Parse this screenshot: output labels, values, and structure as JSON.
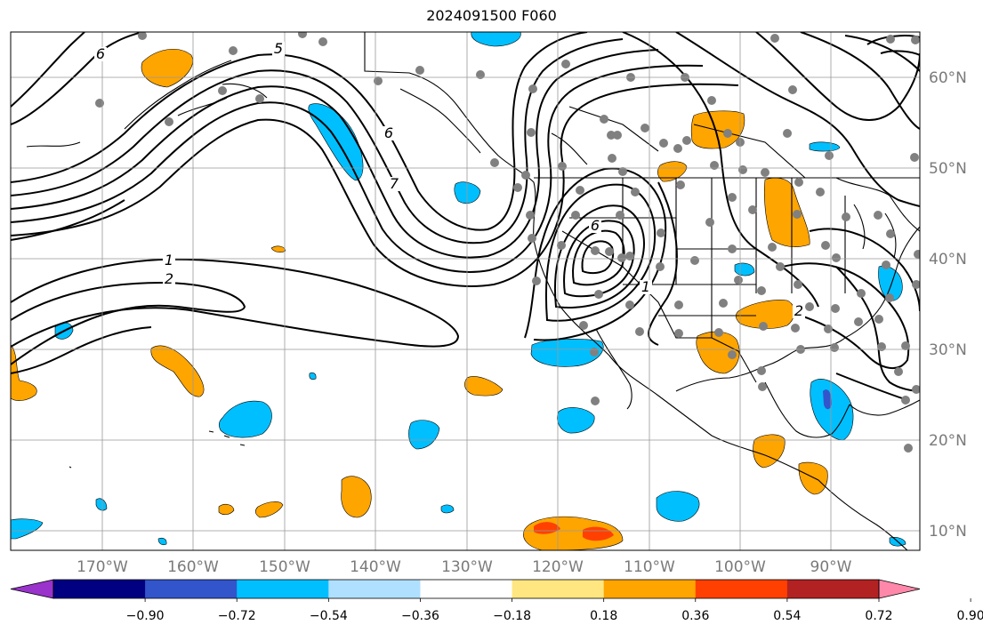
{
  "title": "2024091500 F060",
  "map": {
    "lon_ticks": [
      "170°W",
      "160°W",
      "150°W",
      "140°W",
      "130°W",
      "120°W",
      "110°W",
      "100°W",
      "90°W"
    ],
    "lat_ticks": [
      "60°N",
      "50°N",
      "40°N",
      "30°N",
      "20°N",
      "10°N"
    ],
    "extent_lon": [
      -180,
      -80
    ],
    "extent_lat": [
      8,
      65
    ],
    "contour_labels": [
      "6",
      "5",
      "6",
      "7",
      "6",
      "1",
      "2",
      "1",
      "2"
    ]
  },
  "colorbar": {
    "ticks": [
      "−0.90",
      "−0.72",
      "−0.54",
      "−0.36",
      "−0.18",
      "0.18",
      "0.36",
      "0.54",
      "0.72",
      "0.90"
    ],
    "colors": [
      "#9933cc",
      "#000080",
      "#3355cc",
      "#00bfff",
      "#b0e0ff",
      "#ffffff",
      "#ffe680",
      "#ffa500",
      "#ff4000",
      "#b22222",
      "#ff88aa"
    ]
  }
}
